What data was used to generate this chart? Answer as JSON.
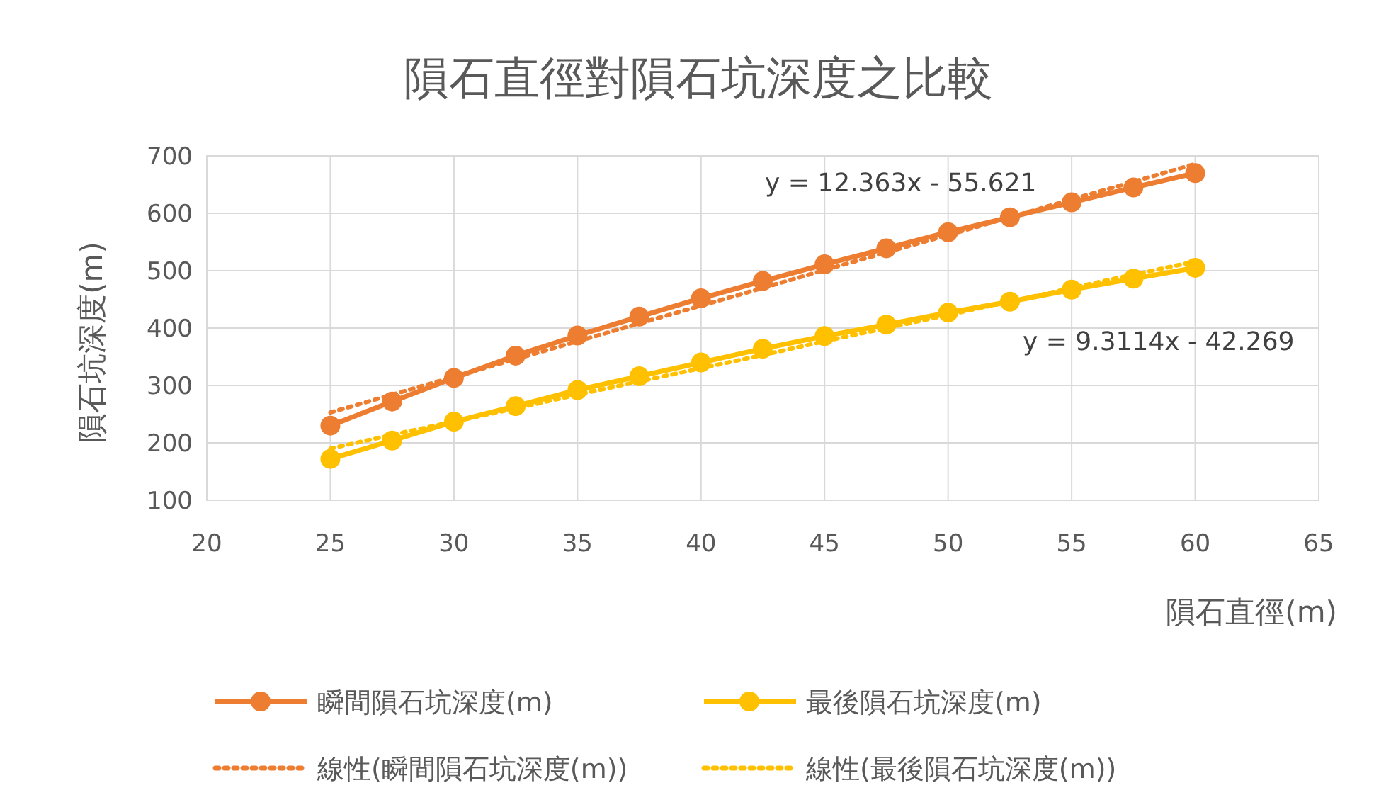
{
  "chart_data": {
    "type": "line",
    "title": "隕石直徑對隕石坑深度之比較",
    "xlabel": "隕石直徑(m)",
    "ylabel": "隕石坑深度(m)",
    "x": [
      25,
      27.5,
      30,
      32.5,
      35,
      37.5,
      40,
      42.5,
      45,
      47.5,
      50,
      52.5,
      55,
      57.5,
      60
    ],
    "series": [
      {
        "name": "瞬間隕石坑深度(m)",
        "color": "#ed7d31",
        "marker": "circle",
        "line_style": "solid",
        "values": [
          230,
          272,
          313,
          352,
          387,
          420,
          452,
          482,
          511,
          539,
          567,
          593,
          619,
          645,
          670
        ]
      },
      {
        "name": "最後隕石坑深度(m)",
        "color": "#ffc000",
        "marker": "circle",
        "line_style": "solid",
        "values": [
          172,
          204,
          237,
          264,
          292,
          316,
          340,
          364,
          386,
          406,
          427,
          446,
          467,
          486,
          505
        ]
      },
      {
        "name": "線性(瞬間隕石坑深度(m))",
        "color": "#ed7d31",
        "marker": "none",
        "line_style": "dotted",
        "values": [
          253,
          284,
          315,
          346,
          377,
          408,
          439,
          470,
          501,
          532,
          562,
          593,
          624,
          655,
          686
        ]
      },
      {
        "name": "線性(最後隕石坑深度(m))",
        "color": "#ffc000",
        "marker": "none",
        "line_style": "dotted",
        "values": [
          190,
          214,
          237,
          260,
          284,
          307,
          330,
          353,
          377,
          400,
          423,
          446,
          470,
          493,
          516
        ]
      }
    ],
    "annotations": [
      "y = 12.363x - 55.621",
      "y = 9.3114x - 42.269"
    ],
    "xlim": [
      20,
      65
    ],
    "xticks": [
      20,
      25,
      30,
      35,
      40,
      45,
      50,
      55,
      60,
      65
    ],
    "ylim": [
      100,
      700
    ],
    "yticks": [
      100,
      200,
      300,
      400,
      500,
      600,
      700
    ],
    "grid": true,
    "legend": "bottom"
  }
}
